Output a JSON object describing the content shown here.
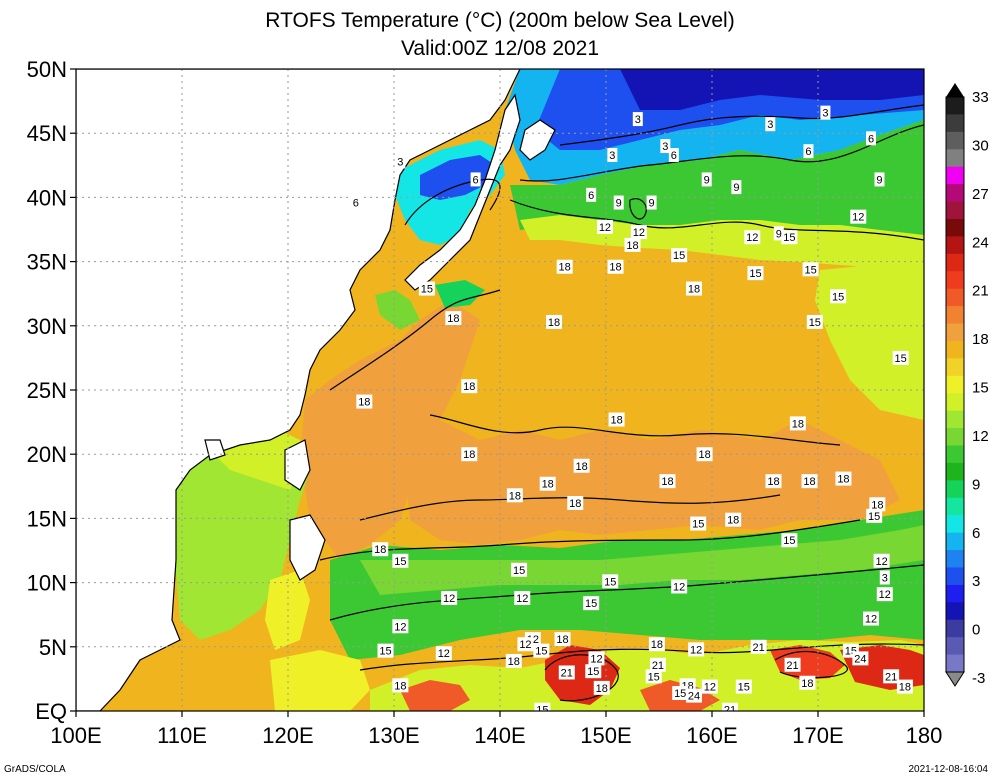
{
  "title_line1": "RTOFS Temperature (°C) (200m below Sea Level)",
  "title_line2": "Valid:00Z 12/08 2021",
  "credit": "GrADS/COLA",
  "timestamp": "2021-12-08-16:04",
  "map": {
    "lon_range": [
      100,
      180
    ],
    "lat_range": [
      0,
      50
    ],
    "lat_ticks": [
      {
        "value": 50,
        "label": "50N"
      },
      {
        "value": 45,
        "label": "45N"
      },
      {
        "value": 40,
        "label": "40N"
      },
      {
        "value": 35,
        "label": "35N"
      },
      {
        "value": 30,
        "label": "30N"
      },
      {
        "value": 25,
        "label": "25N"
      },
      {
        "value": 20,
        "label": "20N"
      },
      {
        "value": 15,
        "label": "15N"
      },
      {
        "value": 10,
        "label": "10N"
      },
      {
        "value": 5,
        "label": "5N"
      },
      {
        "value": 0,
        "label": "EQ"
      }
    ],
    "lon_ticks": [
      {
        "value": 100,
        "label": "100E"
      },
      {
        "value": 110,
        "label": "110E"
      },
      {
        "value": 120,
        "label": "120E"
      },
      {
        "value": 130,
        "label": "130E"
      },
      {
        "value": 140,
        "label": "140E"
      },
      {
        "value": 150,
        "label": "150E"
      },
      {
        "value": 160,
        "label": "160E"
      },
      {
        "value": 170,
        "label": "170E"
      },
      {
        "value": 180,
        "label": "180"
      }
    ],
    "grid_lines": "dotted",
    "contour_labels": [
      {
        "lon": 130.6,
        "lat": 42.8,
        "text": "3"
      },
      {
        "lon": 137.7,
        "lat": 41.4,
        "text": "6"
      },
      {
        "lon": 126.4,
        "lat": 39.6,
        "text": "6"
      },
      {
        "lon": 155.6,
        "lat": 44.0,
        "text": "3"
      },
      {
        "lon": 153.0,
        "lat": 46.1,
        "text": "3"
      },
      {
        "lon": 165.5,
        "lat": 45.7,
        "text": "3"
      },
      {
        "lon": 170.7,
        "lat": 46.6,
        "text": "3"
      },
      {
        "lon": 150.6,
        "lat": 43.3,
        "text": "3"
      },
      {
        "lon": 175.0,
        "lat": 44.6,
        "text": "6"
      },
      {
        "lon": 169.1,
        "lat": 43.6,
        "text": "6"
      },
      {
        "lon": 156.4,
        "lat": 43.3,
        "text": "6"
      },
      {
        "lon": 148.6,
        "lat": 40.2,
        "text": "6"
      },
      {
        "lon": 159.5,
        "lat": 41.4,
        "text": "9"
      },
      {
        "lon": 162.3,
        "lat": 40.8,
        "text": "9"
      },
      {
        "lon": 175.8,
        "lat": 41.4,
        "text": "9"
      },
      {
        "lon": 151.2,
        "lat": 39.6,
        "text": "9"
      },
      {
        "lon": 154.3,
        "lat": 39.6,
        "text": "9"
      },
      {
        "lon": 173.8,
        "lat": 38.5,
        "text": "12"
      },
      {
        "lon": 149.9,
        "lat": 37.7,
        "text": "12"
      },
      {
        "lon": 153.1,
        "lat": 37.3,
        "text": "12"
      },
      {
        "lon": 163.8,
        "lat": 36.9,
        "text": "12"
      },
      {
        "lon": 166.3,
        "lat": 37.2,
        "text": "9"
      },
      {
        "lon": 167.3,
        "lat": 36.9,
        "text": "15"
      },
      {
        "lon": 152.5,
        "lat": 36.3,
        "text": "18"
      },
      {
        "lon": 156.9,
        "lat": 35.5,
        "text": "15"
      },
      {
        "lon": 146.1,
        "lat": 34.6,
        "text": "18"
      },
      {
        "lon": 150.9,
        "lat": 34.6,
        "text": "18"
      },
      {
        "lon": 164.1,
        "lat": 34.1,
        "text": "15"
      },
      {
        "lon": 169.3,
        "lat": 34.4,
        "text": "15"
      },
      {
        "lon": 158.3,
        "lat": 32.9,
        "text": "18"
      },
      {
        "lon": 171.9,
        "lat": 32.3,
        "text": "15"
      },
      {
        "lon": 133.1,
        "lat": 32.9,
        "text": "15"
      },
      {
        "lon": 135.6,
        "lat": 30.6,
        "text": "18"
      },
      {
        "lon": 145.1,
        "lat": 30.3,
        "text": "18"
      },
      {
        "lon": 169.7,
        "lat": 30.3,
        "text": "15"
      },
      {
        "lon": 177.8,
        "lat": 27.5,
        "text": "15"
      },
      {
        "lon": 137.1,
        "lat": 25.3,
        "text": "18"
      },
      {
        "lon": 127.2,
        "lat": 24.1,
        "text": "18"
      },
      {
        "lon": 151.0,
        "lat": 22.7,
        "text": "18"
      },
      {
        "lon": 168.1,
        "lat": 22.4,
        "text": "18"
      },
      {
        "lon": 137.1,
        "lat": 20.0,
        "text": "18"
      },
      {
        "lon": 159.3,
        "lat": 20.0,
        "text": "18"
      },
      {
        "lon": 147.7,
        "lat": 19.1,
        "text": "18"
      },
      {
        "lon": 144.5,
        "lat": 17.7,
        "text": "18"
      },
      {
        "lon": 155.8,
        "lat": 17.9,
        "text": "18"
      },
      {
        "lon": 165.8,
        "lat": 17.9,
        "text": "18"
      },
      {
        "lon": 169.2,
        "lat": 17.9,
        "text": "18"
      },
      {
        "lon": 172.4,
        "lat": 18.1,
        "text": "18"
      },
      {
        "lon": 141.4,
        "lat": 16.8,
        "text": "18"
      },
      {
        "lon": 147.1,
        "lat": 16.2,
        "text": "18"
      },
      {
        "lon": 175.6,
        "lat": 16.1,
        "text": "18"
      },
      {
        "lon": 175.3,
        "lat": 15.2,
        "text": "15"
      },
      {
        "lon": 158.7,
        "lat": 14.6,
        "text": "15"
      },
      {
        "lon": 162.0,
        "lat": 14.9,
        "text": "18"
      },
      {
        "lon": 167.3,
        "lat": 13.3,
        "text": "15"
      },
      {
        "lon": 128.7,
        "lat": 12.6,
        "text": "18"
      },
      {
        "lon": 130.6,
        "lat": 11.7,
        "text": "15"
      },
      {
        "lon": 176.0,
        "lat": 11.7,
        "text": "12"
      },
      {
        "lon": 141.8,
        "lat": 11.0,
        "text": "15"
      },
      {
        "lon": 176.3,
        "lat": 10.4,
        "text": "3"
      },
      {
        "lon": 150.4,
        "lat": 10.1,
        "text": "15"
      },
      {
        "lon": 156.9,
        "lat": 9.7,
        "text": "12"
      },
      {
        "lon": 176.3,
        "lat": 9.1,
        "text": "12"
      },
      {
        "lon": 135.2,
        "lat": 8.8,
        "text": "12"
      },
      {
        "lon": 142.1,
        "lat": 8.8,
        "text": "12"
      },
      {
        "lon": 148.6,
        "lat": 8.4,
        "text": "15"
      },
      {
        "lon": 175.0,
        "lat": 7.2,
        "text": "12"
      },
      {
        "lon": 130.6,
        "lat": 6.6,
        "text": "12"
      },
      {
        "lon": 143.1,
        "lat": 5.6,
        "text": "12"
      },
      {
        "lon": 145.9,
        "lat": 5.6,
        "text": "18"
      },
      {
        "lon": 158.5,
        "lat": 4.8,
        "text": "12"
      },
      {
        "lon": 154.8,
        "lat": 5.2,
        "text": "18"
      },
      {
        "lon": 164.4,
        "lat": 5.0,
        "text": "21"
      },
      {
        "lon": 173.1,
        "lat": 4.7,
        "text": "15"
      },
      {
        "lon": 129.2,
        "lat": 4.7,
        "text": "15"
      },
      {
        "lon": 134.7,
        "lat": 4.5,
        "text": "12"
      },
      {
        "lon": 143.9,
        "lat": 4.7,
        "text": "15"
      },
      {
        "lon": 142.4,
        "lat": 5.2,
        "text": "12"
      },
      {
        "lon": 149.1,
        "lat": 4.1,
        "text": "12"
      },
      {
        "lon": 154.9,
        "lat": 3.6,
        "text": "21"
      },
      {
        "lon": 167.6,
        "lat": 3.6,
        "text": "21"
      },
      {
        "lon": 174.0,
        "lat": 4.1,
        "text": "24"
      },
      {
        "lon": 141.3,
        "lat": 3.9,
        "text": "18"
      },
      {
        "lon": 148.8,
        "lat": 3.1,
        "text": "15"
      },
      {
        "lon": 146.3,
        "lat": 3.0,
        "text": "21"
      },
      {
        "lon": 154.5,
        "lat": 2.7,
        "text": "15"
      },
      {
        "lon": 176.9,
        "lat": 2.7,
        "text": "21"
      },
      {
        "lon": 130.6,
        "lat": 2.0,
        "text": "18"
      },
      {
        "lon": 157.7,
        "lat": 2.0,
        "text": "18"
      },
      {
        "lon": 159.8,
        "lat": 1.9,
        "text": "12"
      },
      {
        "lon": 163.0,
        "lat": 1.9,
        "text": "15"
      },
      {
        "lon": 169.0,
        "lat": 2.2,
        "text": "18"
      },
      {
        "lon": 178.2,
        "lat": 1.9,
        "text": "18"
      },
      {
        "lon": 149.6,
        "lat": 1.8,
        "text": "18"
      },
      {
        "lon": 157.0,
        "lat": 1.4,
        "text": "15"
      },
      {
        "lon": 158.3,
        "lat": 1.2,
        "text": "24"
      },
      {
        "lon": 144.0,
        "lat": 0.1,
        "text": "15"
      },
      {
        "lon": 161.7,
        "lat": 0.1,
        "text": "21"
      }
    ]
  },
  "colorbar": {
    "labels": [
      "33",
      "30",
      "27",
      "24",
      "21",
      "18",
      "15",
      "12",
      "9",
      "6",
      "3",
      "0",
      "-3"
    ],
    "colors": [
      "#1c1c1c",
      "#3c3c3c",
      "#5e5e5e",
      "#808080",
      "#f000f0",
      "#b40a78",
      "#a0143c",
      "#780a0a",
      "#b41414",
      "#dc2814",
      "#f03c1e",
      "#f05a28",
      "#f08232",
      "#f0a03c",
      "#f0b41e",
      "#f0d228",
      "#f0f028",
      "#d2f028",
      "#a0e632",
      "#78d732",
      "#3cc832",
      "#1eb41e",
      "#14d25a",
      "#14e6a0",
      "#14e6e6",
      "#14b4f0",
      "#1e82f0",
      "#1e50f0",
      "#1e1ef0",
      "#1414b4",
      "#3c3ca0",
      "#5a5ab4",
      "#7878c8"
    ]
  }
}
